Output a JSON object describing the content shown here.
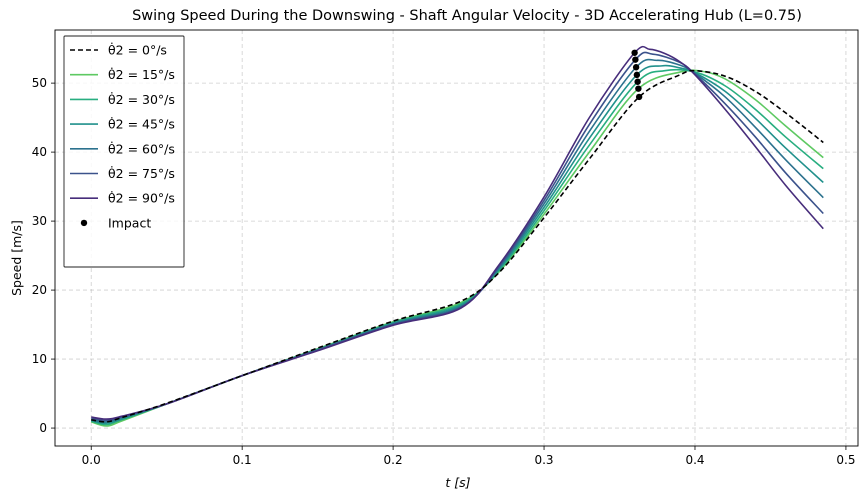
{
  "chart_data": {
    "type": "line",
    "title": "Swing Speed During the Downswing - Shaft Angular Velocity - 3D Accelerating Hub (L=0.75)",
    "xlabel": "t [s]",
    "ylabel": "Speed [m/s]",
    "xlim": [
      -0.024,
      0.508
    ],
    "ylim": [
      -2.6,
      57.7
    ],
    "xticks": [
      0.0,
      0.1,
      0.2,
      0.3,
      0.4,
      0.5
    ],
    "xtick_labels": [
      "0.0",
      "0.1",
      "0.2",
      "0.3",
      "0.4",
      "0.5"
    ],
    "yticks": [
      0,
      10,
      20,
      30,
      40,
      50
    ],
    "ytick_labels": [
      "0",
      "10",
      "20",
      "30",
      "40",
      "50"
    ],
    "grid": true,
    "legend_placement": "upper-left",
    "series": [
      {
        "name": "θ̇2 = 0°/s",
        "color": "#000000",
        "dashed": true,
        "points": [
          [
            0.0,
            1.2
          ],
          [
            0.01,
            0.9
          ],
          [
            0.02,
            1.5
          ],
          [
            0.05,
            3.6
          ],
          [
            0.1,
            7.6
          ],
          [
            0.15,
            11.6
          ],
          [
            0.2,
            15.5
          ],
          [
            0.245,
            18.4
          ],
          [
            0.27,
            22.5
          ],
          [
            0.3,
            30.5
          ],
          [
            0.33,
            39.0
          ],
          [
            0.363,
            48.0
          ],
          [
            0.39,
            51.2
          ],
          [
            0.4,
            51.8
          ],
          [
            0.42,
            51.0
          ],
          [
            0.44,
            48.8
          ],
          [
            0.46,
            45.7
          ],
          [
            0.485,
            41.4
          ]
        ],
        "impact": [
          0.363,
          48.0
        ]
      },
      {
        "name": "θ̇2 = 15°/s",
        "color": "#5ec962",
        "dashed": false,
        "points": [
          [
            0.0,
            0.9
          ],
          [
            0.01,
            0.3
          ],
          [
            0.02,
            1.0
          ],
          [
            0.05,
            3.5
          ],
          [
            0.1,
            7.6
          ],
          [
            0.15,
            11.5
          ],
          [
            0.2,
            15.4
          ],
          [
            0.245,
            18.2
          ],
          [
            0.27,
            22.6
          ],
          [
            0.3,
            31.0
          ],
          [
            0.33,
            40.0
          ],
          [
            0.3625,
            49.2
          ],
          [
            0.39,
            51.6
          ],
          [
            0.405,
            51.7
          ],
          [
            0.42,
            50.6
          ],
          [
            0.44,
            47.6
          ],
          [
            0.46,
            43.8
          ],
          [
            0.485,
            39.2
          ]
        ],
        "impact": [
          0.3625,
          49.2
        ]
      },
      {
        "name": "θ̇2 = 30°/s",
        "color": "#28ae80",
        "dashed": false,
        "points": [
          [
            0.0,
            1.0
          ],
          [
            0.01,
            0.5
          ],
          [
            0.02,
            1.2
          ],
          [
            0.05,
            3.5
          ],
          [
            0.1,
            7.6
          ],
          [
            0.15,
            11.4
          ],
          [
            0.2,
            15.3
          ],
          [
            0.245,
            18.0
          ],
          [
            0.27,
            22.8
          ],
          [
            0.3,
            31.5
          ],
          [
            0.33,
            41.0
          ],
          [
            0.362,
            50.2
          ],
          [
            0.38,
            51.8
          ],
          [
            0.4,
            51.6
          ],
          [
            0.42,
            49.6
          ],
          [
            0.44,
            46.2
          ],
          [
            0.46,
            42.2
          ],
          [
            0.485,
            37.6
          ]
        ],
        "impact": [
          0.362,
          50.2
        ]
      },
      {
        "name": "θ̇2 = 45°/s",
        "color": "#21918c",
        "dashed": false,
        "points": [
          [
            0.0,
            1.1
          ],
          [
            0.01,
            0.7
          ],
          [
            0.02,
            1.3
          ],
          [
            0.05,
            3.5
          ],
          [
            0.1,
            7.6
          ],
          [
            0.15,
            11.4
          ],
          [
            0.2,
            15.2
          ],
          [
            0.245,
            17.8
          ],
          [
            0.27,
            23.0
          ],
          [
            0.3,
            32.0
          ],
          [
            0.33,
            42.0
          ],
          [
            0.3615,
            51.2
          ],
          [
            0.378,
            52.5
          ],
          [
            0.39,
            52.2
          ],
          [
            0.4,
            51.5
          ],
          [
            0.42,
            48.8
          ],
          [
            0.44,
            44.9
          ],
          [
            0.46,
            40.6
          ],
          [
            0.485,
            35.6
          ]
        ],
        "impact": [
          0.3615,
          51.2
        ]
      },
      {
        "name": "θ̇2 = 60°/s",
        "color": "#2c728e",
        "dashed": false,
        "points": [
          [
            0.0,
            1.2
          ],
          [
            0.01,
            0.9
          ],
          [
            0.02,
            1.5
          ],
          [
            0.05,
            3.5
          ],
          [
            0.1,
            7.6
          ],
          [
            0.15,
            11.3
          ],
          [
            0.2,
            15.1
          ],
          [
            0.245,
            17.6
          ],
          [
            0.27,
            23.2
          ],
          [
            0.3,
            32.5
          ],
          [
            0.33,
            43.0
          ],
          [
            0.361,
            52.3
          ],
          [
            0.375,
            53.3
          ],
          [
            0.39,
            52.6
          ],
          [
            0.4,
            51.4
          ],
          [
            0.42,
            48.0
          ],
          [
            0.44,
            43.6
          ],
          [
            0.46,
            38.9
          ],
          [
            0.485,
            33.4
          ]
        ],
        "impact": [
          0.361,
          52.3
        ]
      },
      {
        "name": "θ̇2 = 75°/s",
        "color": "#3b528b",
        "dashed": false,
        "points": [
          [
            0.0,
            1.4
          ],
          [
            0.01,
            1.1
          ],
          [
            0.02,
            1.6
          ],
          [
            0.05,
            3.5
          ],
          [
            0.1,
            7.6
          ],
          [
            0.15,
            11.3
          ],
          [
            0.2,
            15.0
          ],
          [
            0.245,
            17.5
          ],
          [
            0.27,
            23.4
          ],
          [
            0.3,
            33.0
          ],
          [
            0.33,
            44.0
          ],
          [
            0.3605,
            53.4
          ],
          [
            0.372,
            54.2
          ],
          [
            0.39,
            53.0
          ],
          [
            0.4,
            51.3
          ],
          [
            0.42,
            47.0
          ],
          [
            0.44,
            42.2
          ],
          [
            0.46,
            37.0
          ],
          [
            0.485,
            31.1
          ]
        ],
        "impact": [
          0.3605,
          53.4
        ]
      },
      {
        "name": "θ̇2 = 90°/s",
        "color": "#472d7b",
        "dashed": false,
        "points": [
          [
            0.0,
            1.6
          ],
          [
            0.01,
            1.3
          ],
          [
            0.02,
            1.7
          ],
          [
            0.05,
            3.5
          ],
          [
            0.1,
            7.6
          ],
          [
            0.15,
            11.2
          ],
          [
            0.2,
            14.9
          ],
          [
            0.245,
            17.4
          ],
          [
            0.27,
            23.6
          ],
          [
            0.3,
            33.5
          ],
          [
            0.33,
            45.0
          ],
          [
            0.36,
            54.4
          ],
          [
            0.37,
            54.9
          ],
          [
            0.38,
            54.3
          ],
          [
            0.39,
            53.1
          ],
          [
            0.4,
            51.2
          ],
          [
            0.42,
            46.2
          ],
          [
            0.44,
            40.8
          ],
          [
            0.46,
            35.2
          ],
          [
            0.485,
            28.9
          ]
        ],
        "impact": [
          0.36,
          54.4
        ]
      }
    ],
    "impact_label": "Impact",
    "impact_color": "#000000"
  }
}
